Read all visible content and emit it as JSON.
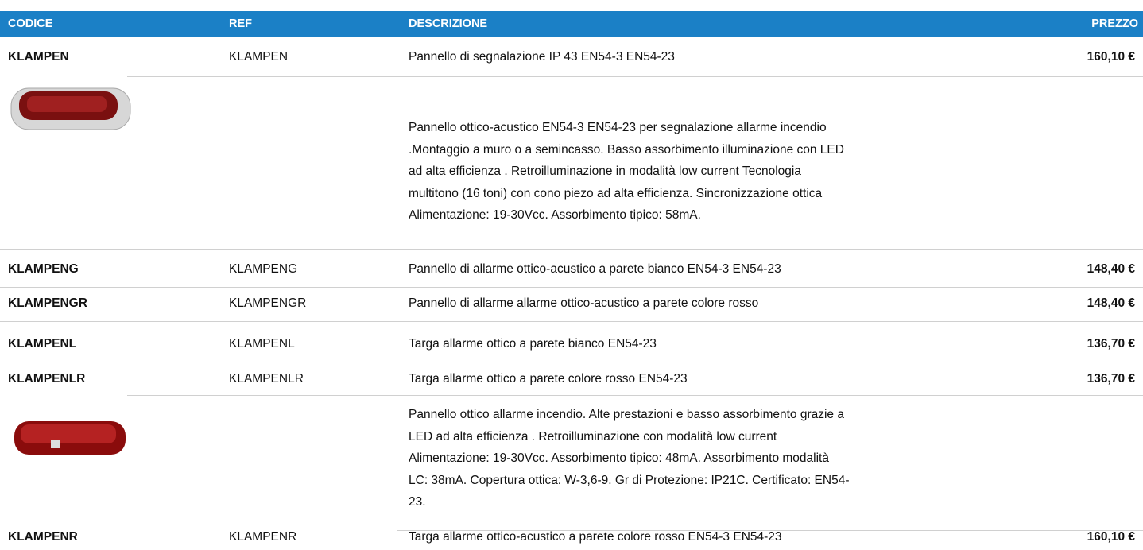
{
  "header": {
    "codice": "CODICE",
    "ref": "REF",
    "descrizione": "DESCRIZIONE",
    "prezzo": "PREZZO"
  },
  "rows": [
    {
      "codice": "KLAMPEN",
      "ref": "KLAMPEN",
      "descrizione": "Pannello di segnalazione IP 43 EN54-3 EN54-23",
      "prezzo": "160,10 €",
      "details": [
        "Pannello ottico-acustico EN54-3 EN54-23 per segnalazione allarme incendio",
        ".Montaggio a muro o a semincasso.  Basso assorbimento illuminazione con LED",
        "ad alta efficienza . Retroilluminazione in modalità low current Tecnologia",
        "multitono (16 toni) con cono piezo ad alta efficienza. Sincronizzazione ottica",
        "Alimentazione: 19-30Vcc. Assorbimento tipico: 58mA."
      ]
    },
    {
      "codice": "KLAMPENG",
      "ref": "KLAMPENG",
      "descrizione": "Pannello di allarme ottico-acustico a parete bianco EN54-3 EN54-23",
      "prezzo": "148,40 €"
    },
    {
      "codice": "KLAMPENGR",
      "ref": "KLAMPENGR",
      "descrizione": "Pannello di allarme allarme ottico-acustico a parete colore rosso",
      "prezzo": "148,40 €"
    },
    {
      "codice": "KLAMPENL",
      "ref": "KLAMPENL",
      "descrizione": "Targa allarme ottico a parete bianco EN54-23",
      "prezzo": "136,70 €"
    },
    {
      "codice": "KLAMPENLR",
      "ref": "KLAMPENLR",
      "descrizione": "Targa allarme ottico a parete colore rosso EN54-23",
      "prezzo": "136,70 €",
      "details": [
        "Pannello ottico allarme incendio. Alte prestazioni e basso assorbimento grazie a",
        "LED ad alta efficienza . Retroilluminazione con modalità low current",
        "Alimentazione: 19-30Vcc. Assorbimento tipico: 48mA. Assorbimento modalità",
        "LC: 38mA. Copertura ottica: W-3,6-9. Gr di Protezione: IP21C.  Certificato: EN54-",
        "23."
      ]
    },
    {
      "codice": "KLAMPENR",
      "ref": "KLAMPENR",
      "descrizione": "Targa allarme ottico-acustico a parete colore rosso EN54-3 EN54-23",
      "prezzo": "160,10 €"
    }
  ]
}
